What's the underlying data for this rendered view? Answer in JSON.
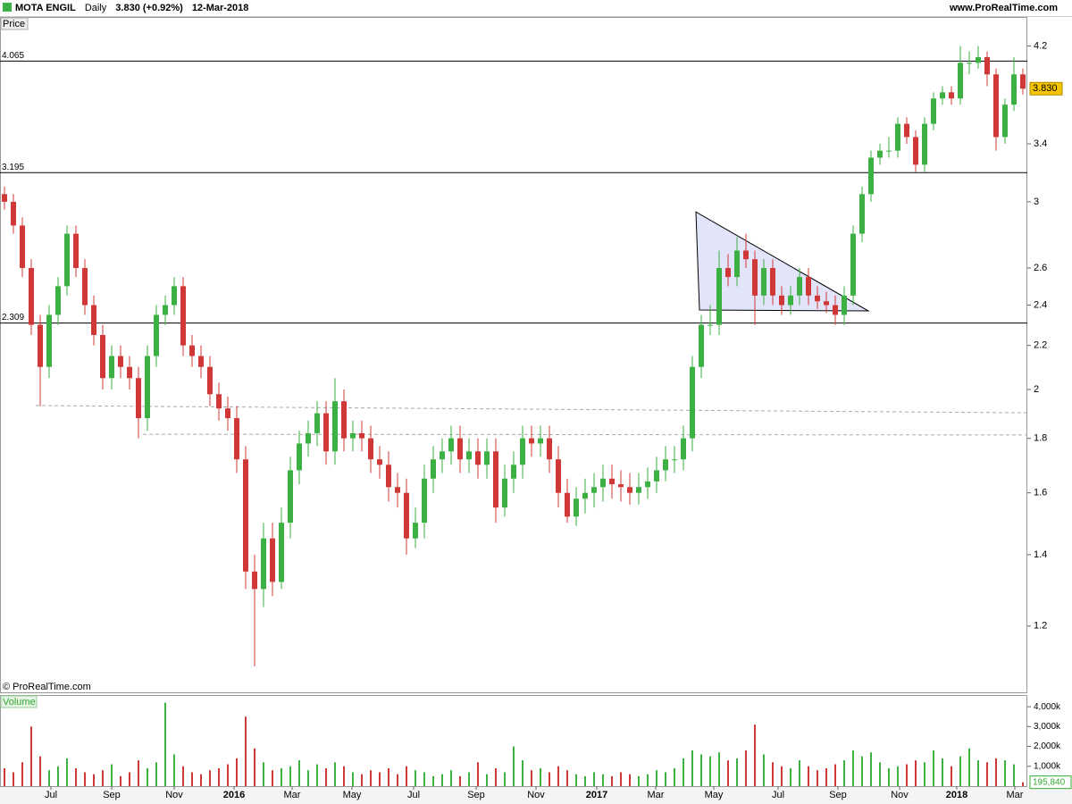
{
  "header": {
    "symbol": "MOTA ENGIL",
    "period": "Daily",
    "quote": "3.830 (+0.92%)",
    "date": "12-Mar-2018",
    "site": "www.ProRealTime.com",
    "copyright": "© ProRealTime.com"
  },
  "chart_data": [
    {
      "type": "candlestick",
      "ylabel": "Price",
      "log_scale": true,
      "ylim": [
        1.04,
        4.48
      ],
      "yticks": [
        1.2,
        1.4,
        1.6,
        1.8,
        2,
        2.2,
        2.4,
        2.6,
        3,
        3.4,
        4.2
      ],
      "xlim": [
        -0.5,
        114.5
      ],
      "xticks": [
        {
          "value": 5.2,
          "label": "Jul"
        },
        {
          "value": 12,
          "label": "Sep"
        },
        {
          "value": 19,
          "label": "Nov"
        },
        {
          "value": 25.7,
          "label": "2016"
        },
        {
          "value": 32.2,
          "label": "Mar"
        },
        {
          "value": 38.9,
          "label": "May"
        },
        {
          "value": 45.8,
          "label": "Jul"
        },
        {
          "value": 52.8,
          "label": "Sep"
        },
        {
          "value": 59.5,
          "label": "Nov"
        },
        {
          "value": 66.3,
          "label": "2017"
        },
        {
          "value": 72.9,
          "label": "Mar"
        },
        {
          "value": 79.4,
          "label": "May"
        },
        {
          "value": 86.6,
          "label": "Jul"
        },
        {
          "value": 93.3,
          "label": "Sep"
        },
        {
          "value": 100.2,
          "label": "Nov"
        },
        {
          "value": 106.6,
          "label": "2018"
        },
        {
          "value": 113.1,
          "label": "Mar"
        }
      ],
      "up_color": "#3cb043",
      "down_color": "#d03838",
      "open": [
        3.05,
        3.0,
        2.85,
        2.6,
        2.3,
        2.1,
        2.35,
        2.5,
        2.8,
        2.6,
        2.4,
        2.25,
        2.05,
        2.15,
        2.1,
        2.05,
        1.88,
        2.15,
        2.35,
        2.4,
        2.5,
        2.2,
        2.15,
        2.1,
        1.98,
        1.92,
        1.88,
        1.72,
        1.35,
        1.3,
        1.45,
        1.32,
        1.5,
        1.68,
        1.78,
        1.82,
        1.9,
        1.75,
        1.95,
        1.8,
        1.82,
        1.8,
        1.72,
        1.7,
        1.62,
        1.6,
        1.45,
        1.5,
        1.65,
        1.72,
        1.75,
        1.8,
        1.72,
        1.75,
        1.7,
        1.75,
        1.55,
        1.65,
        1.7,
        1.8,
        1.78,
        1.8,
        1.72,
        1.6,
        1.52,
        1.58,
        1.6,
        1.62,
        1.65,
        1.63,
        1.62,
        1.6,
        1.62,
        1.64,
        1.68,
        1.72,
        1.72,
        1.8,
        2.1,
        2.3,
        2.3,
        2.6,
        2.55,
        2.7,
        2.65,
        2.45,
        2.6,
        2.45,
        2.4,
        2.45,
        2.55,
        2.45,
        2.42,
        2.4,
        2.35,
        2.45,
        2.8,
        3.05,
        3.3,
        3.35,
        3.35,
        3.55,
        3.45,
        3.25,
        3.55,
        3.75,
        3.8,
        3.75,
        4.05,
        4.05,
        4.1,
        3.95,
        3.45,
        3.7,
        3.95
      ],
      "high": [
        3.1,
        3.05,
        2.9,
        2.65,
        2.35,
        2.4,
        2.55,
        2.85,
        2.85,
        2.65,
        2.45,
        2.3,
        2.2,
        2.2,
        2.15,
        2.1,
        2.2,
        2.4,
        2.45,
        2.55,
        2.55,
        2.25,
        2.2,
        2.15,
        2.03,
        1.97,
        1.93,
        1.77,
        1.4,
        1.5,
        1.5,
        1.55,
        1.73,
        1.83,
        1.87,
        1.95,
        1.95,
        2.05,
        2.0,
        1.87,
        1.87,
        1.85,
        1.77,
        1.75,
        1.67,
        1.65,
        1.55,
        1.7,
        1.77,
        1.8,
        1.85,
        1.85,
        1.8,
        1.8,
        1.8,
        1.8,
        1.7,
        1.75,
        1.85,
        1.85,
        1.85,
        1.85,
        1.77,
        1.65,
        1.62,
        1.65,
        1.67,
        1.7,
        1.7,
        1.68,
        1.67,
        1.67,
        1.69,
        1.73,
        1.77,
        1.77,
        1.85,
        2.15,
        2.35,
        2.4,
        2.7,
        2.68,
        2.78,
        2.8,
        2.7,
        2.65,
        2.65,
        2.5,
        2.5,
        2.6,
        2.6,
        2.5,
        2.47,
        2.45,
        2.5,
        2.85,
        3.1,
        3.35,
        3.4,
        3.45,
        3.6,
        3.6,
        3.5,
        3.6,
        3.8,
        3.85,
        3.85,
        4.2,
        4.15,
        4.2,
        4.15,
        4.0,
        3.75,
        4.1,
        4.0
      ],
      "low": [
        2.95,
        2.8,
        2.55,
        2.25,
        1.93,
        2.05,
        2.3,
        2.45,
        2.55,
        2.35,
        2.2,
        2.0,
        2.0,
        2.05,
        2.0,
        1.8,
        1.83,
        2.1,
        2.3,
        2.35,
        2.15,
        2.1,
        2.05,
        1.93,
        1.87,
        1.83,
        1.67,
        1.3,
        1.1,
        1.25,
        1.28,
        1.3,
        1.45,
        1.63,
        1.73,
        1.77,
        1.7,
        1.7,
        1.75,
        1.75,
        1.75,
        1.67,
        1.65,
        1.57,
        1.55,
        1.4,
        1.42,
        1.45,
        1.6,
        1.67,
        1.7,
        1.67,
        1.67,
        1.65,
        1.65,
        1.5,
        1.52,
        1.6,
        1.65,
        1.73,
        1.73,
        1.67,
        1.55,
        1.5,
        1.49,
        1.53,
        1.55,
        1.57,
        1.58,
        1.57,
        1.56,
        1.56,
        1.58,
        1.6,
        1.64,
        1.67,
        1.68,
        1.75,
        2.05,
        2.25,
        2.25,
        2.5,
        2.5,
        2.6,
        2.3,
        2.4,
        2.4,
        2.35,
        2.35,
        2.4,
        2.4,
        2.38,
        2.36,
        2.3,
        2.3,
        2.4,
        2.75,
        3.0,
        3.25,
        3.3,
        3.3,
        3.4,
        3.2,
        3.2,
        3.5,
        3.7,
        3.7,
        3.7,
        3.95,
        4.0,
        3.85,
        3.35,
        3.4,
        3.65,
        3.78
      ],
      "close": [
        3.0,
        2.85,
        2.6,
        2.3,
        2.1,
        2.35,
        2.5,
        2.8,
        2.6,
        2.4,
        2.25,
        2.05,
        2.15,
        2.1,
        2.05,
        1.88,
        2.15,
        2.35,
        2.4,
        2.5,
        2.2,
        2.15,
        2.1,
        1.98,
        1.92,
        1.88,
        1.72,
        1.35,
        1.3,
        1.45,
        1.32,
        1.5,
        1.68,
        1.78,
        1.82,
        1.9,
        1.75,
        1.95,
        1.8,
        1.82,
        1.8,
        1.72,
        1.7,
        1.62,
        1.6,
        1.45,
        1.5,
        1.65,
        1.72,
        1.75,
        1.8,
        1.72,
        1.75,
        1.7,
        1.75,
        1.55,
        1.65,
        1.7,
        1.8,
        1.78,
        1.8,
        1.72,
        1.6,
        1.52,
        1.58,
        1.6,
        1.62,
        1.65,
        1.63,
        1.62,
        1.6,
        1.62,
        1.64,
        1.68,
        1.72,
        1.72,
        1.8,
        2.1,
        2.3,
        2.3,
        2.6,
        2.55,
        2.7,
        2.65,
        2.45,
        2.6,
        2.45,
        2.4,
        2.45,
        2.55,
        2.45,
        2.42,
        2.4,
        2.35,
        2.45,
        2.8,
        3.05,
        3.3,
        3.35,
        3.35,
        3.55,
        3.45,
        3.25,
        3.55,
        3.75,
        3.8,
        3.75,
        4.05,
        4.05,
        4.1,
        3.95,
        3.45,
        3.7,
        3.95,
        3.83
      ],
      "last_value": 3.83,
      "last_value_label": "3.830",
      "hlines": [
        4.065,
        3.195,
        2.309
      ],
      "trendlines": [
        {
          "x": [
            3.5,
            114.5
          ],
          "y": [
            1.932,
            1.902
          ]
        },
        {
          "x": [
            15.5,
            114.5
          ],
          "y": [
            1.816,
            1.813
          ]
        }
      ],
      "triangle": {
        "x": [
          77.4,
          77.8,
          96.7
        ],
        "y": [
          2.935,
          2.375,
          2.37
        ]
      }
    },
    {
      "type": "bar",
      "ylabel": "Volume",
      "ylim": [
        0,
        4500000
      ],
      "yticks": [
        {
          "value": 1000000,
          "label": "1,000k"
        },
        {
          "value": 2000000,
          "label": "2,000k"
        },
        {
          "value": 3000000,
          "label": "3,000k"
        },
        {
          "value": 4000000,
          "label": "4,000k"
        }
      ],
      "values": [
        900000,
        700000,
        1200000,
        3000000,
        1500000,
        800000,
        1000000,
        1400000,
        900000,
        700000,
        600000,
        800000,
        1100000,
        500000,
        700000,
        1300000,
        900000,
        1200000,
        4200000,
        1600000,
        1000000,
        700000,
        600000,
        800000,
        900000,
        1100000,
        1400000,
        3500000,
        1900000,
        1200000,
        800000,
        900000,
        1000000,
        1300000,
        800000,
        1100000,
        900000,
        1200000,
        1000000,
        700000,
        600000,
        800000,
        700000,
        900000,
        600000,
        1000000,
        800000,
        700000,
        500000,
        600000,
        800000,
        500000,
        700000,
        1200000,
        600000,
        900000,
        700000,
        2000000,
        1300000,
        800000,
        900000,
        700000,
        1000000,
        800000,
        600000,
        500000,
        700000,
        600000,
        500000,
        700000,
        600000,
        500000,
        600000,
        800000,
        700000,
        900000,
        1400000,
        1800000,
        1600000,
        1500000,
        1700000,
        1300000,
        1400000,
        1800000,
        3100000,
        1600000,
        1200000,
        1000000,
        900000,
        1300000,
        1000000,
        800000,
        900000,
        1100000,
        1300000,
        1800000,
        1500000,
        1700000,
        1200000,
        900000,
        1000000,
        1100000,
        1300000,
        1200000,
        1800000,
        1400000,
        1000000,
        1500000,
        1900000,
        1300000,
        1200000,
        1400000,
        1300000,
        1100000,
        195840
      ],
      "last_value": 195840,
      "last_value_label": "195,840"
    }
  ]
}
